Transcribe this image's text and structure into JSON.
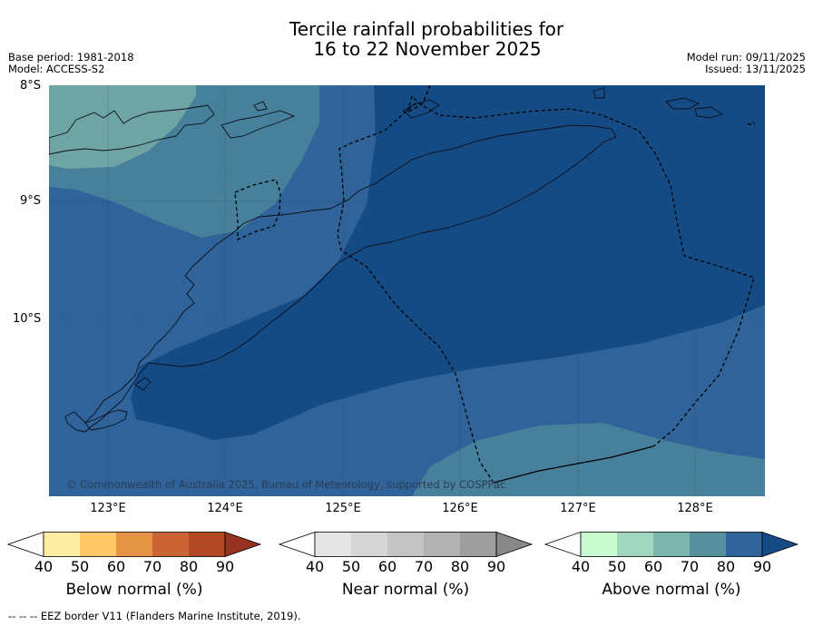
{
  "title": {
    "line1": "Tercile rainfall probabilities for",
    "line2": "16 to 22 November 2025"
  },
  "header_left": {
    "base_period": "Base period: 1981-2018",
    "model": "Model: ACCESS-S2"
  },
  "header_right": {
    "model_run": "Model run: 09/11/2025",
    "issued": "Issued: 13/11/2025"
  },
  "map": {
    "lat_labels": [
      "8°S",
      "9°S",
      "10°S"
    ],
    "lon_labels": [
      "123°E",
      "124°E",
      "125°E",
      "126°E",
      "127°E",
      "128°E"
    ],
    "copyright": "© Commonwealth of Australia 2025, Bureau of Meteorology, supported by COSPPac",
    "colors": {
      "p60": "#6fa4a5",
      "p70": "#46809b",
      "p80": "#2f6399",
      "p90": "#154b85"
    }
  },
  "colorbars": [
    {
      "title": "Below normal (%)",
      "ticks": [
        "40",
        "50",
        "60",
        "70",
        "80",
        "90"
      ],
      "colors": [
        "#ffffff",
        "#fdeda2",
        "#fdc865",
        "#e39444",
        "#cc6333",
        "#b04924",
        "#973221"
      ]
    },
    {
      "title": "Near normal (%)",
      "ticks": [
        "40",
        "50",
        "60",
        "70",
        "80",
        "90"
      ],
      "colors": [
        "#ffffff",
        "#e5e5e5",
        "#d6d6d6",
        "#c5c5c5",
        "#b2b2b2",
        "#9e9e9e",
        "#888888"
      ]
    },
    {
      "title": "Above normal (%)",
      "ticks": [
        "40",
        "50",
        "60",
        "70",
        "80",
        "90"
      ],
      "colors": [
        "#ffffff",
        "#c9fcd1",
        "#a2d8c1",
        "#7cb5ae",
        "#568f9e",
        "#2f6399",
        "#154b85"
      ]
    }
  ],
  "footnote": "--  --  -- EEZ border V11 (Flanders Marine Institute, 2019)."
}
